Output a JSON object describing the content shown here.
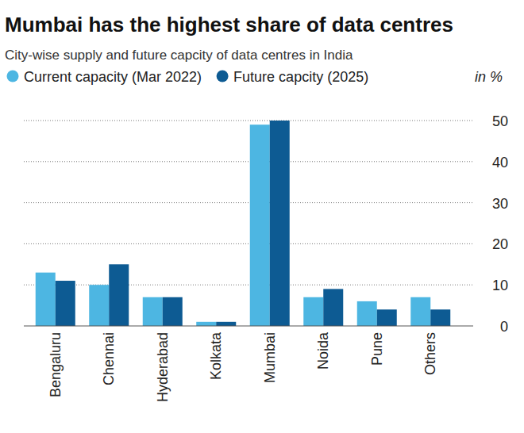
{
  "chart_data": {
    "type": "bar",
    "title": "Mumbai has the highest share of data centres",
    "subtitle": "City-wise supply and future capcity of data centres in India",
    "y_label": "in %",
    "categories": [
      "Bengaluru",
      "Chennai",
      "Hyderabad",
      "Kolkata",
      "Mumbai",
      "Noida",
      "Pune",
      "Others"
    ],
    "series": [
      {
        "name": "Current capacity (Mar 2022)",
        "color": "#4db6e2",
        "values": [
          13,
          10,
          7,
          1,
          49,
          7,
          6,
          7
        ]
      },
      {
        "name": "Future capcity (2025)",
        "color": "#0d5b93",
        "values": [
          11,
          15,
          7,
          1,
          50,
          9,
          4,
          4
        ]
      }
    ],
    "ylim": [
      0,
      50
    ],
    "yticks": [
      0,
      10,
      20,
      30,
      40,
      50
    ],
    "grid": true,
    "legend": "top-left"
  }
}
